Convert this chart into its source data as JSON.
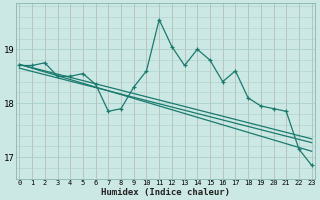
{
  "xlabel": "Humidex (Indice chaleur)",
  "background_color": "#cce8e4",
  "grid_color_main": "#aacfca",
  "grid_color_red": "#d4a0a0",
  "line_color": "#1a7a6e",
  "x": [
    0,
    1,
    2,
    3,
    4,
    5,
    6,
    7,
    8,
    9,
    10,
    11,
    12,
    13,
    14,
    15,
    16,
    17,
    18,
    19,
    20,
    21,
    22,
    23
  ],
  "y_main": [
    18.7,
    18.7,
    18.75,
    18.5,
    18.5,
    18.55,
    18.35,
    17.85,
    17.9,
    18.3,
    18.6,
    19.55,
    19.05,
    18.7,
    19.0,
    18.8,
    18.4,
    18.6,
    18.1,
    17.95,
    17.9,
    17.85,
    17.15,
    16.85
  ],
  "y_trend_upper": [
    18.72,
    18.66,
    18.6,
    18.54,
    18.48,
    18.42,
    18.36,
    18.3,
    18.24,
    18.18,
    18.12,
    18.06,
    18.0,
    17.94,
    17.88,
    17.82,
    17.76,
    17.7,
    17.64,
    17.58,
    17.52,
    17.46,
    17.4,
    17.34
  ],
  "y_trend_lower": [
    18.65,
    18.59,
    18.53,
    18.47,
    18.41,
    18.35,
    18.29,
    18.23,
    18.17,
    18.11,
    18.05,
    17.99,
    17.93,
    17.87,
    17.81,
    17.75,
    17.69,
    17.63,
    17.57,
    17.51,
    17.45,
    17.39,
    17.33,
    17.27
  ],
  "y_steep": [
    18.72,
    18.65,
    18.58,
    18.51,
    18.44,
    18.37,
    18.3,
    18.23,
    18.16,
    18.09,
    18.02,
    17.95,
    17.88,
    17.81,
    17.74,
    17.67,
    17.6,
    17.53,
    17.46,
    17.39,
    17.32,
    17.25,
    17.18,
    17.11
  ],
  "ylim": [
    16.6,
    19.85
  ],
  "yticks": [
    17,
    18,
    19
  ],
  "xlim": [
    -0.3,
    23.3
  ]
}
